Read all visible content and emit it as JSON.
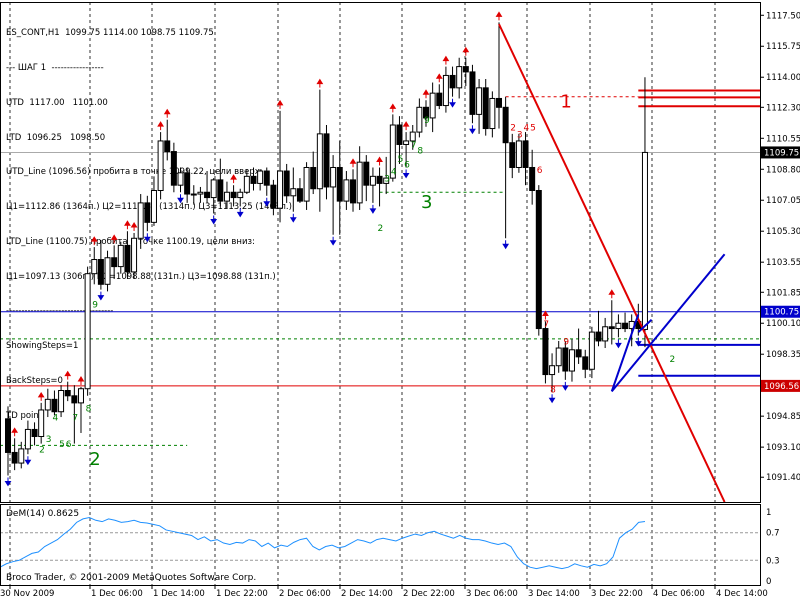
{
  "colors": {
    "background": "#ffffff",
    "axis": "#000000",
    "grid": "#000000",
    "bull": "#ffffff",
    "bear": "#000000",
    "red": "#e00000",
    "blue": "#0000cc",
    "green": "#008000",
    "indicator": "#1e90ff",
    "current_price_tag": "#000000",
    "blue_level_tag": "#0000cc",
    "red_level_tag": "#cc0000"
  },
  "info_panel": {
    "line1": "ES_CONT,H1  1099.75 1114.00 1098.75 1109.75",
    "line2": "--- ШАГ 1  -----------------",
    "line3": "UTD  1117.00   1101.00",
    "line4": "LTD  1096.25   1098.50",
    "line5": "UTD_Line (1096.56) пробита в точке 1099.22, цели вверх:",
    "line6": "Ц1=1112.86 (1364п.) Ц2=1112.36 (1314п.) Ц3=1113.25 (1403п.)",
    "line7": "LTD_Line (1100.75) пробита в точке 1100.19, цели вниз:",
    "line8": "Ц1=1097.13 (306п.) Ц2=1098.88 (131п.) Ц3=1098.88 (131п.)",
    "line9": "-----------------------------------",
    "line10": "ShowingSteps=1",
    "line11": "BackSteps=0",
    "line12": "TD point"
  },
  "copyright": "Broco Trader, © 2001-2009 MetaQuotes Software Corp.",
  "chart_data": {
    "type": "candlestick",
    "symbol": "ES_CONT",
    "timeframe": "H1",
    "ylim": [
      1090.0,
      1118.25
    ],
    "y_ticks": [
      "1117.50",
      "1115.75",
      "1114.00",
      "1112.30",
      "1110.55",
      "1108.80",
      "1107.05",
      "1105.30",
      "1103.55",
      "1101.85",
      "1100.10",
      "1098.35",
      "1096.60",
      "1094.85",
      "1093.10",
      "1091.40"
    ],
    "x_ticks": [
      "30 Nov 2009",
      "1 Dec 06:00",
      "1 Dec 14:00",
      "1 Dec 22:00",
      "2 Dec 06:00",
      "2 Dec 14:00",
      "2 Dec 22:00",
      "3 Dec 06:00",
      "3 Dec 14:00",
      "3 Dec 22:00",
      "4 Dec 06:00",
      "4 Dec 14:00"
    ],
    "price_tags": [
      {
        "label": "1109.75",
        "value": 1109.75,
        "style": "current"
      },
      {
        "label": "1100.75",
        "value": 1100.75,
        "style": "blue"
      },
      {
        "label": "1096.56",
        "value": 1096.56,
        "style": "red"
      }
    ],
    "candles": [
      [
        1094.7,
        1095.4,
        1091.5,
        1092.8
      ],
      [
        1092.8,
        1093.6,
        1091.8,
        1092.2
      ],
      [
        1092.2,
        1093.4,
        1091.9,
        1093.0
      ],
      [
        1093.0,
        1094.6,
        1092.7,
        1094.1
      ],
      [
        1094.1,
        1094.5,
        1093.2,
        1093.7
      ],
      [
        1093.7,
        1095.6,
        1093.3,
        1095.2
      ],
      [
        1095.2,
        1096.4,
        1094.8,
        1095.8
      ],
      [
        1095.8,
        1096.3,
        1094.9,
        1095.1
      ],
      [
        1095.1,
        1096.6,
        1094.8,
        1096.3
      ],
      [
        1096.3,
        1096.8,
        1095.7,
        1096.0
      ],
      [
        1096.0,
        1096.6,
        1093.3,
        1095.6
      ],
      [
        1095.6,
        1096.5,
        1093.9,
        1096.4
      ],
      [
        1096.4,
        1103.3,
        1096.0,
        1102.9
      ],
      [
        1102.9,
        1104.4,
        1102.3,
        1103.7
      ],
      [
        1103.7,
        1104.8,
        1102.0,
        1102.3
      ],
      [
        1102.3,
        1104.2,
        1101.9,
        1103.8
      ],
      [
        1103.8,
        1104.5,
        1102.6,
        1103.3
      ],
      [
        1103.3,
        1104.7,
        1102.9,
        1104.5
      ],
      [
        1104.5,
        1105.3,
        1102.6,
        1103.0
      ],
      [
        1103.0,
        1105.2,
        1102.6,
        1104.9
      ],
      [
        1104.9,
        1107.4,
        1104.3,
        1106.9
      ],
      [
        1106.9,
        1107.3,
        1105.3,
        1105.8
      ],
      [
        1105.8,
        1108.4,
        1105.6,
        1107.6
      ],
      [
        1107.6,
        1110.9,
        1107.1,
        1110.4
      ],
      [
        1110.4,
        1111.6,
        1109.3,
        1109.8
      ],
      [
        1109.8,
        1110.3,
        1107.5,
        1107.9
      ],
      [
        1107.9,
        1108.9,
        1107.5,
        1108.6
      ],
      [
        1108.6,
        1108.9,
        1106.9,
        1107.4
      ],
      [
        1107.4,
        1107.9,
        1106.8,
        1107.4
      ],
      [
        1107.4,
        1107.8,
        1106.9,
        1107.5
      ],
      [
        1107.5,
        1108.7,
        1106.9,
        1107.2
      ],
      [
        1107.2,
        1108.3,
        1106.3,
        1108.2
      ],
      [
        1108.2,
        1109.4,
        1106.7,
        1107.0
      ],
      [
        1107.0,
        1108.1,
        1106.6,
        1107.5
      ],
      [
        1107.5,
        1107.9,
        1106.7,
        1107.2
      ],
      [
        1107.2,
        1107.7,
        1106.7,
        1107.5
      ],
      [
        1107.5,
        1108.8,
        1107.4,
        1108.4
      ],
      [
        1108.4,
        1108.9,
        1107.6,
        1108.0
      ],
      [
        1108.0,
        1108.8,
        1107.6,
        1108.7
      ],
      [
        1108.7,
        1108.9,
        1107.3,
        1107.9
      ],
      [
        1107.9,
        1108.2,
        1106.2,
        1106.6
      ],
      [
        1106.6,
        1112.1,
        1105.8,
        1108.7
      ],
      [
        1108.7,
        1109.1,
        1106.9,
        1107.3
      ],
      [
        1107.3,
        1108.9,
        1106.4,
        1107.7
      ],
      [
        1107.7,
        1108.3,
        1106.9,
        1107.0
      ],
      [
        1107.0,
        1109.2,
        1106.5,
        1108.9
      ],
      [
        1108.9,
        1109.8,
        1107.4,
        1107.7
      ],
      [
        1107.7,
        1113.3,
        1106.4,
        1110.8
      ],
      [
        1110.8,
        1111.3,
        1107.1,
        1107.8
      ],
      [
        1107.8,
        1109.6,
        1105.1,
        1108.9
      ],
      [
        1108.9,
        1110.4,
        1105.1,
        1107.0
      ],
      [
        1107.0,
        1108.7,
        1106.5,
        1108.2
      ],
      [
        1108.2,
        1108.8,
        1106.4,
        1106.9
      ],
      [
        1106.9,
        1110.1,
        1106.5,
        1109.2
      ],
      [
        1109.2,
        1109.6,
        1107.0,
        1107.9
      ],
      [
        1107.9,
        1108.9,
        1106.9,
        1108.4
      ],
      [
        1108.4,
        1108.9,
        1106.7,
        1108.0
      ],
      [
        1108.0,
        1109.5,
        1107.4,
        1108.3
      ],
      [
        1108.3,
        1111.9,
        1108.1,
        1111.3
      ],
      [
        1111.3,
        1111.8,
        1109.1,
        1110.2
      ],
      [
        1110.2,
        1110.9,
        1108.9,
        1110.4
      ],
      [
        1110.4,
        1111.3,
        1109.9,
        1110.9
      ],
      [
        1110.9,
        1112.8,
        1110.6,
        1112.3
      ],
      [
        1112.3,
        1112.7,
        1111.2,
        1111.7
      ],
      [
        1111.7,
        1113.7,
        1110.9,
        1113.1
      ],
      [
        1113.1,
        1113.6,
        1112.2,
        1112.4
      ],
      [
        1112.4,
        1114.6,
        1112.0,
        1114.1
      ],
      [
        1114.1,
        1114.6,
        1112.9,
        1113.4
      ],
      [
        1113.4,
        1115.1,
        1112.8,
        1114.6
      ],
      [
        1114.6,
        1115.1,
        1113.5,
        1114.3
      ],
      [
        1114.3,
        1114.7,
        1111.4,
        1111.9
      ],
      [
        1111.9,
        1113.9,
        1110.8,
        1113.4
      ],
      [
        1113.4,
        1113.9,
        1110.7,
        1111.1
      ],
      [
        1111.1,
        1113.2,
        1110.6,
        1112.8
      ],
      [
        1112.8,
        1117.1,
        1111.1,
        1112.3
      ],
      [
        1112.3,
        1112.9,
        1104.9,
        1110.3
      ],
      [
        1110.3,
        1110.8,
        1108.3,
        1108.9
      ],
      [
        1108.9,
        1110.8,
        1108.6,
        1110.4
      ],
      [
        1110.4,
        1110.9,
        1107.9,
        1108.9
      ],
      [
        1108.9,
        1109.9,
        1106.8,
        1107.6
      ],
      [
        1107.6,
        1107.9,
        1099.4,
        1099.8
      ],
      [
        1099.8,
        1100.2,
        1096.7,
        1097.2
      ],
      [
        1097.2,
        1098.4,
        1096.2,
        1097.7
      ],
      [
        1097.7,
        1099.1,
        1097.3,
        1098.7
      ],
      [
        1098.7,
        1099.1,
        1096.9,
        1097.4
      ],
      [
        1097.4,
        1099.2,
        1096.8,
        1098.6
      ],
      [
        1098.6,
        1099.8,
        1097.8,
        1098.2
      ],
      [
        1098.2,
        1098.6,
        1097.0,
        1097.5
      ],
      [
        1097.5,
        1099.9,
        1097.0,
        1099.6
      ],
      [
        1099.6,
        1100.8,
        1098.8,
        1099.1
      ],
      [
        1099.1,
        1100.4,
        1098.7,
        1099.9
      ],
      [
        1099.9,
        1101.4,
        1098.9,
        1099.8
      ],
      [
        1099.8,
        1100.6,
        1099.3,
        1100.1
      ],
      [
        1100.1,
        1100.7,
        1099.6,
        1099.8
      ],
      [
        1099.8,
        1100.6,
        1098.8,
        1100.2
      ],
      [
        1100.2,
        1101.2,
        1099.4,
        1099.8
      ],
      [
        1099.75,
        1114.0,
        1098.75,
        1109.75
      ]
    ],
    "lines": [
      {
        "name": "UTD_Line",
        "color": "red",
        "x1": 74,
        "y1": 1117.0,
        "x2": 108,
        "y2": 1090.0
      },
      {
        "name": "LTD_Line",
        "color": "blue",
        "x1": 91,
        "y1": 1096.25,
        "x2": 108,
        "y2": 1104.0
      },
      {
        "name": "blue_steep",
        "color": "blue",
        "x1": 91,
        "y1": 1096.25,
        "x2": 95,
        "y2": 1100.6
      },
      {
        "name": "blue_tick",
        "color": "blue",
        "x1": 95,
        "y1": 1099.6,
        "x2": 97,
        "y2": 1100.3
      }
    ],
    "hlines": [
      {
        "value": 1100.75,
        "color": "blue",
        "style": "solid",
        "x1": 0,
        "x2": 108
      },
      {
        "value": 1096.56,
        "color": "red",
        "style": "solid",
        "x1": 0,
        "x2": 108
      },
      {
        "value": 1109.75,
        "color": "gray",
        "style": "solid",
        "x1": 0,
        "x2": 108
      },
      {
        "value": 1099.22,
        "color": "green",
        "style": "dash",
        "x1": 0,
        "x2": 108
      },
      {
        "value": 1112.9,
        "color": "red",
        "style": "dash",
        "x1": 75,
        "x2": 95
      },
      {
        "value": 1107.5,
        "color": "green",
        "style": "dash",
        "x1": 56,
        "x2": 75
      },
      {
        "value": 1093.2,
        "color": "green",
        "style": "dash",
        "x1": 0,
        "x2": 27
      },
      {
        "value": 1113.25,
        "color": "red",
        "style": "solid",
        "x1": 95,
        "x2": 108
      },
      {
        "value": 1112.86,
        "color": "red",
        "style": "solid",
        "x1": 95,
        "x2": 108
      },
      {
        "value": 1112.36,
        "color": "red",
        "style": "solid",
        "x1": 95,
        "x2": 108
      },
      {
        "value": 1098.88,
        "color": "blue",
        "style": "solid",
        "x1": 95,
        "x2": 108
      },
      {
        "value": 1097.13,
        "color": "blue",
        "style": "solid",
        "x1": 95,
        "x2": 108
      }
    ],
    "big_labels": [
      {
        "text": "1",
        "x": 84,
        "y": 1112.3,
        "color": "red"
      },
      {
        "text": "3",
        "x": 63,
        "y": 1106.6,
        "color": "green"
      },
      {
        "text": "2",
        "x": 13,
        "y": 1092.1,
        "color": "green"
      }
    ],
    "td_labels": [
      {
        "text": "2",
        "x": 5,
        "y": 1092.8,
        "color": "green"
      },
      {
        "text": "3",
        "x": 6,
        "y": 1093.4,
        "color": "green"
      },
      {
        "text": "4",
        "x": 7,
        "y": 1094.6,
        "color": "green"
      },
      {
        "text": "5",
        "x": 8,
        "y": 1093.1,
        "color": "green"
      },
      {
        "text": "6",
        "x": 9,
        "y": 1093.1,
        "color": "green"
      },
      {
        "text": "7",
        "x": 10,
        "y": 1094.6,
        "color": "green"
      },
      {
        "text": "8",
        "x": 12,
        "y": 1095.1,
        "color": "green"
      },
      {
        "text": "9",
        "x": 13,
        "y": 1101.0,
        "color": "green"
      },
      {
        "text": "2",
        "x": 56,
        "y": 1105.3,
        "color": "green"
      },
      {
        "text": "3",
        "x": 57,
        "y": 1108.1,
        "color": "green"
      },
      {
        "text": "4",
        "x": 58,
        "y": 1108.5,
        "color": "green"
      },
      {
        "text": "5",
        "x": 59,
        "y": 1109.2,
        "color": "green"
      },
      {
        "text": "6",
        "x": 60,
        "y": 1108.9,
        "color": "green"
      },
      {
        "text": "7",
        "x": 61,
        "y": 1110.0,
        "color": "green"
      },
      {
        "text": "8",
        "x": 62,
        "y": 1109.7,
        "color": "green"
      },
      {
        "text": "9",
        "x": 63,
        "y": 1111.4,
        "color": "green"
      },
      {
        "text": "2",
        "x": 76,
        "y": 1111.0,
        "color": "red"
      },
      {
        "text": "3",
        "x": 77,
        "y": 1110.6,
        "color": "red"
      },
      {
        "text": "4",
        "x": 78,
        "y": 1111.0,
        "color": "red"
      },
      {
        "text": "5",
        "x": 79,
        "y": 1111.0,
        "color": "red"
      },
      {
        "text": "6",
        "x": 80,
        "y": 1108.6,
        "color": "red"
      },
      {
        "text": "7",
        "x": 81,
        "y": 1099.9,
        "color": "red"
      },
      {
        "text": "8",
        "x": 82,
        "y": 1096.2,
        "color": "red"
      },
      {
        "text": "9",
        "x": 84,
        "y": 1098.9,
        "color": "red"
      },
      {
        "text": "2",
        "x": 100,
        "y": 1097.9,
        "color": "green"
      }
    ],
    "up_arrows": [
      1,
      5,
      9,
      11,
      13,
      16,
      18,
      19,
      23,
      24,
      34,
      41,
      47,
      52,
      56,
      58,
      60,
      63,
      65,
      66,
      69,
      74,
      81,
      91
    ],
    "down_arrows": [
      0,
      3,
      14,
      21,
      26,
      31,
      35,
      39,
      43,
      49,
      55,
      60,
      67,
      70,
      75,
      82,
      84,
      92,
      95
    ],
    "indicator": {
      "name": "DeM(14)",
      "label": "DeM(14) 0.8625",
      "value": 0.8625,
      "ylim": [
        0.0,
        1.0
      ],
      "levels": [
        0.7,
        0.3
      ],
      "ticks": [
        "1",
        "0.7",
        "0.3",
        "0"
      ],
      "values": [
        0.2,
        0.25,
        0.28,
        0.3,
        0.35,
        0.4,
        0.42,
        0.5,
        0.55,
        0.6,
        0.68,
        0.75,
        0.85,
        0.9,
        0.92,
        0.88,
        0.86,
        0.9,
        0.88,
        0.85,
        0.86,
        0.88,
        0.85,
        0.84,
        0.82,
        0.8,
        0.74,
        0.72,
        0.7,
        0.68,
        0.66,
        0.6,
        0.64,
        0.58,
        0.6,
        0.55,
        0.53,
        0.56,
        0.55,
        0.6,
        0.58,
        0.5,
        0.55,
        0.48,
        0.52,
        0.5,
        0.56,
        0.6,
        0.62,
        0.5,
        0.45,
        0.5,
        0.52,
        0.48,
        0.5,
        0.55,
        0.6,
        0.58,
        0.55,
        0.6,
        0.62,
        0.6,
        0.58,
        0.62,
        0.65,
        0.68,
        0.66,
        0.7,
        0.72,
        0.68,
        0.65,
        0.62,
        0.66,
        0.62,
        0.6,
        0.6,
        0.58,
        0.55,
        0.53,
        0.55,
        0.5,
        0.35,
        0.25,
        0.2,
        0.18,
        0.2,
        0.22,
        0.2,
        0.18,
        0.2,
        0.25,
        0.22,
        0.2,
        0.24,
        0.22,
        0.25,
        0.35,
        0.62,
        0.7,
        0.75,
        0.85,
        0.8625
      ]
    }
  }
}
